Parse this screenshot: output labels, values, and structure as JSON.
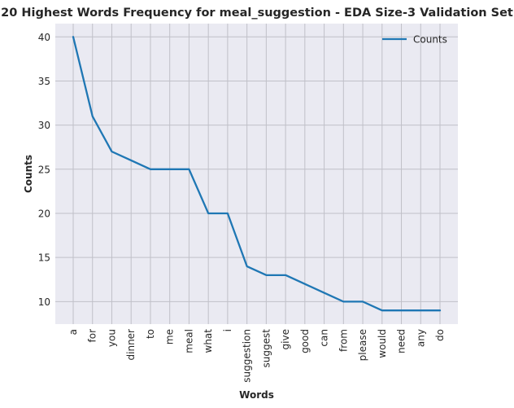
{
  "chart_data": {
    "type": "line",
    "title": "20 Highest Words Frequency for meal_suggestion - EDA Size-3 Validation Set",
    "xlabel": "Words",
    "ylabel": "Counts",
    "categories": [
      "a",
      "for",
      "you",
      "dinner",
      "to",
      "me",
      "meal",
      "what",
      "i",
      "suggestion",
      "suggest",
      "give",
      "good",
      "can",
      "from",
      "please",
      "would",
      "need",
      "any",
      "do"
    ],
    "series": [
      {
        "name": "Counts",
        "values": [
          40,
          31,
          27,
          26,
          25,
          25,
          25,
          20,
          20,
          14,
          13,
          13,
          12,
          11,
          10,
          10,
          9,
          9,
          9,
          9
        ]
      }
    ],
    "ylim": [
      7.45,
      41.5
    ],
    "yticks": [
      10,
      15,
      20,
      25,
      30,
      35,
      40
    ],
    "grid": true,
    "legend_position": "top-right",
    "colors": {
      "plot_background": "#eaeaf2",
      "grid": "#c0c0c8",
      "line": "#1f77b4",
      "text": "#262626"
    }
  }
}
